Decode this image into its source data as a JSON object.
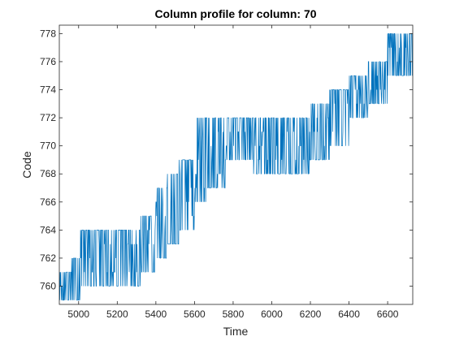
{
  "chart_data": {
    "type": "line",
    "title": "Column profile for column: 70",
    "xlabel": "Time",
    "ylabel": "Code",
    "xlim": [
      4900,
      6730
    ],
    "ylim": [
      758.7,
      778.6
    ],
    "xticks": [
      5000,
      5200,
      5400,
      5600,
      5800,
      6000,
      6200,
      6400,
      6600
    ],
    "yticks": [
      760,
      762,
      764,
      766,
      768,
      770,
      772,
      774,
      776,
      778
    ],
    "grid": false,
    "legend": "none",
    "series_color": "#0072BD",
    "series": [
      {
        "description": "single noisy column profile; per-sample values jump between a low and high code around a slowly rising trend",
        "segments": [
          {
            "x_start": 4900,
            "x_end": 4960,
            "low": 759,
            "high": 761
          },
          {
            "x_start": 4960,
            "x_end": 5010,
            "low": 759,
            "high": 762
          },
          {
            "x_start": 5010,
            "x_end": 5200,
            "low": 760,
            "high": 764
          },
          {
            "x_start": 5200,
            "x_end": 5320,
            "low": 760,
            "high": 764
          },
          {
            "x_start": 5320,
            "x_end": 5400,
            "low": 761,
            "high": 765
          },
          {
            "x_start": 5400,
            "x_end": 5460,
            "low": 762,
            "high": 767
          },
          {
            "x_start": 5460,
            "x_end": 5520,
            "low": 763,
            "high": 768
          },
          {
            "x_start": 5520,
            "x_end": 5600,
            "low": 764,
            "high": 769
          },
          {
            "x_start": 5600,
            "x_end": 5660,
            "low": 766,
            "high": 772
          },
          {
            "x_start": 5660,
            "x_end": 5760,
            "low": 767,
            "high": 772
          },
          {
            "x_start": 5760,
            "x_end": 5900,
            "low": 769,
            "high": 772
          },
          {
            "x_start": 5900,
            "x_end": 6100,
            "low": 768,
            "high": 772
          },
          {
            "x_start": 6100,
            "x_end": 6200,
            "low": 768,
            "high": 772
          },
          {
            "x_start": 6200,
            "x_end": 6300,
            "low": 769,
            "high": 773
          },
          {
            "x_start": 6300,
            "x_end": 6400,
            "low": 770,
            "high": 774
          },
          {
            "x_start": 6400,
            "x_end": 6500,
            "low": 772,
            "high": 775
          },
          {
            "x_start": 6500,
            "x_end": 6600,
            "low": 773,
            "high": 776
          },
          {
            "x_start": 6600,
            "x_end": 6730,
            "low": 775,
            "high": 778
          }
        ]
      }
    ]
  }
}
